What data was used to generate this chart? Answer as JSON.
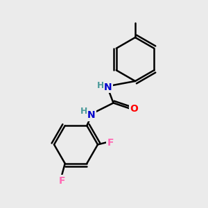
{
  "background_color": "#ebebeb",
  "bond_color": "#000000",
  "bond_width": 1.8,
  "atom_colors": {
    "N": "#0000cc",
    "O": "#ff0000",
    "F": "#ff69b4",
    "C": "#000000",
    "H": "#4a9a9a"
  },
  "font_size": 10,
  "figsize": [
    3.0,
    3.0
  ],
  "dpi": 100
}
